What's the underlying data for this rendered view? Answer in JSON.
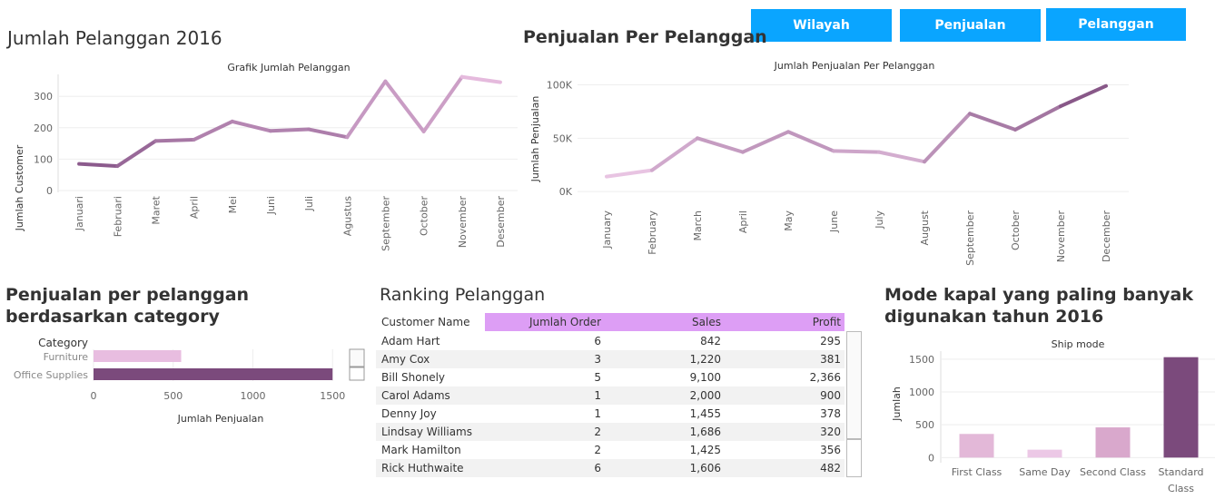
{
  "nav": {
    "buttons": [
      "Wilayah",
      "Penjualan",
      "Pelanggan"
    ],
    "color": "#0aa5ff"
  },
  "panel1": {
    "title": "Jumlah Pelanggan 2016",
    "chart_title": "Grafik Jumlah Pelanggan"
  },
  "panel2": {
    "title": "Penjualan Per Pelanggan",
    "chart_title": "Jumlah Penjualan Per Pelanggan"
  },
  "panel3": {
    "title_line1": "Penjualan per pelanggan",
    "title_line2": "berdasarkan category"
  },
  "panel4": {
    "title": "Ranking Pelanggan"
  },
  "panel5": {
    "title_line1": "Mode kapal yang paling banyak",
    "title_line2": "digunakan tahun 2016",
    "chart_title": "Ship mode"
  },
  "chart_data": [
    {
      "type": "line",
      "title": "Grafik Jumlah Pelanggan",
      "xlabel": "",
      "ylabel": "Jumlah Customer",
      "categories": [
        "Januari",
        "Februari",
        "Maret",
        "April",
        "Mei",
        "Juni",
        "Juli",
        "Agustus",
        "September",
        "October",
        "November",
        "Desember"
      ],
      "values": [
        85,
        78,
        158,
        162,
        220,
        190,
        195,
        170,
        348,
        188,
        362,
        345
      ],
      "yticks": [
        0,
        100,
        200,
        300
      ],
      "ylim": [
        0,
        370
      ],
      "grid": true,
      "colors": [
        "#8b5a8c",
        "#e8bde0"
      ]
    },
    {
      "type": "line",
      "title": "Jumlah Penjualan Per Pelanggan",
      "xlabel": "",
      "ylabel": "Jumlah Penjualan",
      "categories": [
        "January",
        "February",
        "March",
        "April",
        "May",
        "June",
        "July",
        "August",
        "September",
        "October",
        "November",
        "December"
      ],
      "values": [
        14000,
        20000,
        50000,
        37000,
        56000,
        38000,
        37000,
        28000,
        73000,
        58000,
        80000,
        99000
      ],
      "yticks": [
        0,
        50000,
        100000
      ],
      "ytick_labels": [
        "0K",
        "50K",
        "100K"
      ],
      "ylim": [
        -5000,
        103000
      ],
      "grid": true,
      "colors": [
        "#ecc8e6",
        "#7b4a7c"
      ]
    },
    {
      "type": "bar",
      "orientation": "horizontal",
      "title": "",
      "axis_header": "Category",
      "xlabel": "Jumlah Penjualan",
      "ylabel": "",
      "categories": [
        "Furniture",
        "Office Supplies"
      ],
      "values": [
        550,
        1500
      ],
      "xticks": [
        0,
        500,
        1000,
        1500
      ],
      "xlim": [
        0,
        1550
      ],
      "colors": [
        "#e8bde0",
        "#7b4a7c"
      ]
    },
    {
      "type": "table",
      "title": "Ranking Pelanggan",
      "columns": [
        "Customer Name",
        "Jumlah Order",
        "Sales",
        "Profit"
      ],
      "rows": [
        [
          "Adam Hart",
          "6",
          "842",
          "295"
        ],
        [
          "Amy Cox",
          "3",
          "1,220",
          "381"
        ],
        [
          "Bill Shonely",
          "5",
          "9,100",
          "2,366"
        ],
        [
          "Carol Adams",
          "1",
          "2,000",
          "900"
        ],
        [
          "Denny Joy",
          "1",
          "1,455",
          "378"
        ],
        [
          "Lindsay Williams",
          "2",
          "1,686",
          "320"
        ],
        [
          "Mark Hamilton",
          "2",
          "1,425",
          "356"
        ],
        [
          "Rick Huthwaite",
          "6",
          "1,606",
          "482"
        ]
      ],
      "header_color": "#dd9ef5"
    },
    {
      "type": "bar",
      "title": "Ship mode",
      "xlabel": "",
      "ylabel": "Jumlah",
      "categories": [
        "First Class",
        "Same Day",
        "Second Class",
        "Standard Class"
      ],
      "values": [
        360,
        120,
        460,
        1530
      ],
      "yticks": [
        0,
        500,
        1000,
        1500
      ],
      "ylim": [
        -120,
        1650
      ],
      "grid": true,
      "colors": [
        "#e3b8d8",
        "#ecc8e6",
        "#d9a8cc",
        "#7b4a7c"
      ]
    }
  ]
}
